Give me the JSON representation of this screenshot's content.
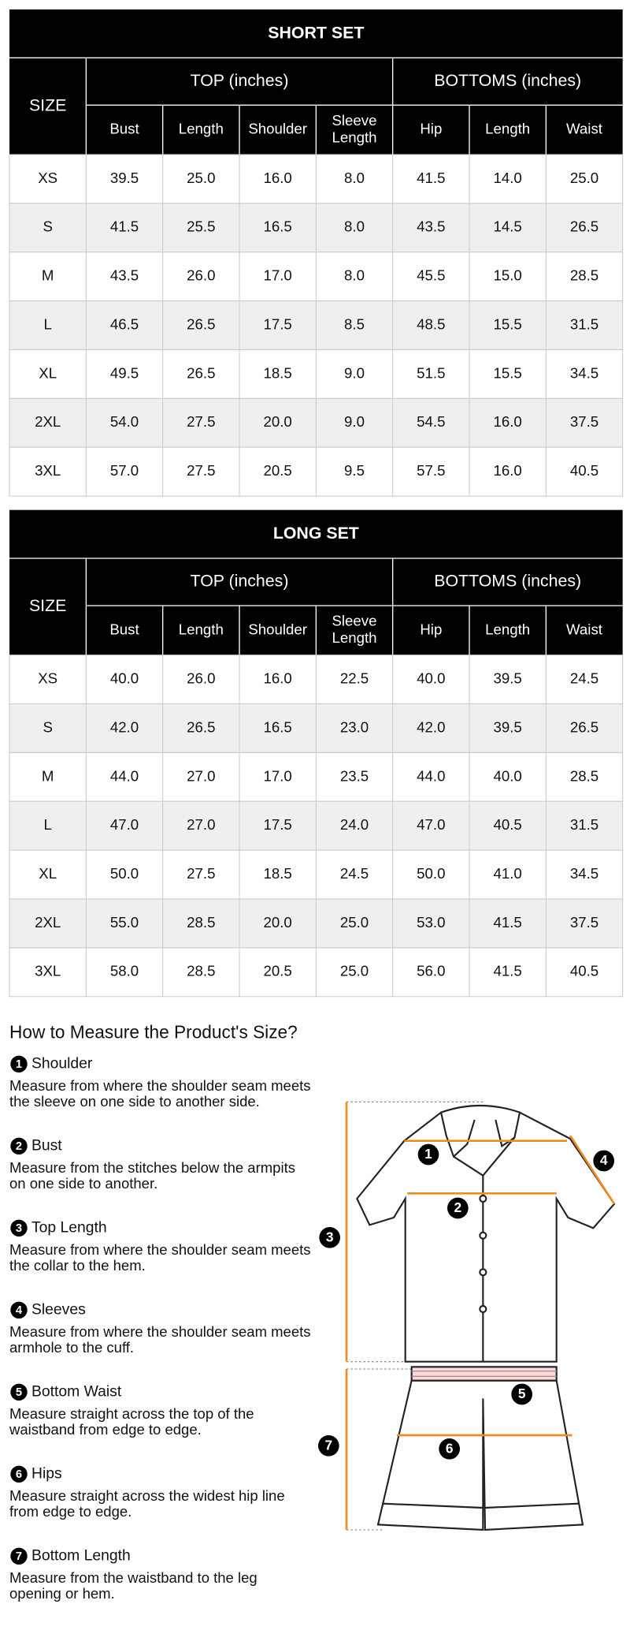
{
  "tables": [
    {
      "title": "SHORT SET",
      "size_label": "SIZE",
      "top_label": "TOP (inches)",
      "bottoms_label": "BOTTOMS (inches)",
      "columns": [
        "Bust",
        "Length",
        "Shoulder",
        "Sleeve Length",
        "Hip",
        "Length",
        "Waist"
      ],
      "rows": [
        [
          "XS",
          "39.5",
          "25.0",
          "16.0",
          "8.0",
          "41.5",
          "14.0",
          "25.0"
        ],
        [
          "S",
          "41.5",
          "25.5",
          "16.5",
          "8.0",
          "43.5",
          "14.5",
          "26.5"
        ],
        [
          "M",
          "43.5",
          "26.0",
          "17.0",
          "8.0",
          "45.5",
          "15.0",
          "28.5"
        ],
        [
          "L",
          "46.5",
          "26.5",
          "17.5",
          "8.5",
          "48.5",
          "15.5",
          "31.5"
        ],
        [
          "XL",
          "49.5",
          "26.5",
          "18.5",
          "9.0",
          "51.5",
          "15.5",
          "34.5"
        ],
        [
          "2XL",
          "54.0",
          "27.5",
          "20.0",
          "9.0",
          "54.5",
          "16.0",
          "37.5"
        ],
        [
          "3XL",
          "57.0",
          "27.5",
          "20.5",
          "9.5",
          "57.5",
          "16.0",
          "40.5"
        ]
      ]
    },
    {
      "title": "LONG SET",
      "size_label": "SIZE",
      "top_label": "TOP (inches)",
      "bottoms_label": "BOTTOMS (inches)",
      "columns": [
        "Bust",
        "Length",
        "Shoulder",
        "Sleeve Length",
        "Hip",
        "Length",
        "Waist"
      ],
      "rows": [
        [
          "XS",
          "40.0",
          "26.0",
          "16.0",
          "22.5",
          "40.0",
          "39.5",
          "24.5"
        ],
        [
          "S",
          "42.0",
          "26.5",
          "16.5",
          "23.0",
          "42.0",
          "39.5",
          "26.5"
        ],
        [
          "M",
          "44.0",
          "27.0",
          "17.0",
          "23.5",
          "44.0",
          "40.0",
          "28.5"
        ],
        [
          "L",
          "47.0",
          "27.0",
          "17.5",
          "24.0",
          "47.0",
          "40.5",
          "31.5"
        ],
        [
          "XL",
          "50.0",
          "27.5",
          "18.5",
          "24.5",
          "50.0",
          "41.0",
          "34.5"
        ],
        [
          "2XL",
          "55.0",
          "28.5",
          "20.0",
          "25.0",
          "53.0",
          "41.5",
          "37.5"
        ],
        [
          "3XL",
          "58.0",
          "28.5",
          "20.5",
          "25.0",
          "56.0",
          "41.5",
          "40.5"
        ]
      ]
    }
  ],
  "measure": {
    "heading": "How to Measure the Product's Size?",
    "items": [
      {
        "number": "1",
        "title": "Shoulder",
        "description": "Measure from where the shoulder seam meets the sleeve on one side to another side."
      },
      {
        "number": "2",
        "title": "Bust",
        "description": "Measure from the stitches below the armpits on one side to another."
      },
      {
        "number": "3",
        "title": "Top Length",
        "description": "Measure from where the shoulder seam meets the collar to the hem."
      },
      {
        "number": "4",
        "title": "Sleeves",
        "description": "Measure from where the shoulder seam meets armhole to the cuff."
      },
      {
        "number": "5",
        "title": "Bottom Waist",
        "description": "Measure straight across the top of the waistband from edge to edge."
      },
      {
        "number": "6",
        "title": "Hips",
        "description": "Measure straight across the widest hip line from edge to edge."
      },
      {
        "number": "7",
        "title": "Bottom Length",
        "description": "Measure from the waistband to the leg opening or hem."
      }
    ]
  }
}
